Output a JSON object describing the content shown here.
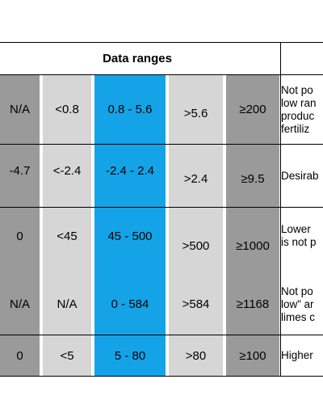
{
  "header": {
    "title": "Data ranges"
  },
  "rows": [
    {
      "values": [
        "N/A",
        "<0.8",
        "0.8 - 5.6",
        ">5.6",
        "≥200"
      ],
      "note": [
        "Not po",
        "low ran",
        "produc",
        "fertiliz"
      ]
    },
    {
      "values": [
        "-4.7",
        "<-2.4",
        "-2.4 - 2.4",
        ">2.4",
        "≥9.5"
      ],
      "note": [
        "Desirab"
      ]
    },
    {
      "values": [
        "0",
        "<45",
        "45 - 500",
        ">500",
        "≥1000"
      ],
      "note": [
        "Lower",
        "is not p"
      ]
    },
    {
      "values": [
        "N/A",
        "N/A",
        "0 - 584",
        ">584",
        "≥1168"
      ],
      "note": [
        "Not po",
        "low” ar",
        "limes c"
      ]
    },
    {
      "values": [
        "0",
        "<5",
        "5 - 80",
        ">80",
        "≥100"
      ],
      "note": [
        "Higher"
      ]
    }
  ]
}
